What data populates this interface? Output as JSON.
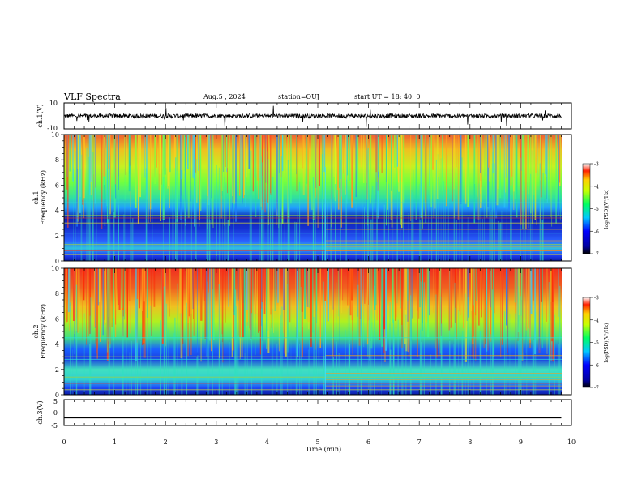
{
  "header": {
    "title": "VLF Spectra",
    "date": "Aug.5  , 2024",
    "station": "station=OUJ",
    "start": "start  UT  =   18: 40: 0"
  },
  "chart_data": [
    {
      "type": "line",
      "ylabel": "ch.1(V)",
      "ylim": [
        -10,
        10
      ],
      "yticks": [
        "10",
        "-10"
      ],
      "xlim": [
        0,
        10
      ],
      "description_series": "noisy waveform around 0 V with spikes"
    },
    {
      "type": "heatmap",
      "ylabel_top": "ch.1",
      "ylabel": "Frequency (kHz)",
      "ylim": [
        0,
        10
      ],
      "yticks": [
        "0",
        "2",
        "4",
        "6",
        "8",
        "10"
      ],
      "xlim": [
        0,
        10
      ],
      "colorbar": {
        "label": "log(PSD)(V²/Hz)",
        "ticks": [
          "-3",
          "-4",
          "-5",
          "-6",
          "-7"
        ],
        "range": [
          -7,
          -3
        ]
      }
    },
    {
      "type": "heatmap",
      "ylabel_top": "ch.2",
      "ylabel": "Frequency (kHz)",
      "ylim": [
        0,
        10
      ],
      "yticks": [
        "0",
        "2",
        "4",
        "6",
        "8",
        "10"
      ],
      "xlim": [
        0,
        10
      ],
      "colorbar": {
        "label": "log(PSD)(V²/Hz)",
        "ticks": [
          "-3",
          "-4",
          "-5",
          "-6",
          "-7"
        ],
        "range": [
          -7,
          -3
        ]
      }
    },
    {
      "type": "line",
      "ylabel": "ch.3(V)",
      "ylim": [
        -5,
        5
      ],
      "yticks": [
        "5",
        "0",
        "-5"
      ],
      "xlim": [
        0,
        10
      ],
      "values_constant": -2
    }
  ],
  "xaxis": {
    "label": "Time  (min)",
    "ticks": [
      "0",
      "1",
      "2",
      "3",
      "4",
      "5",
      "6",
      "7",
      "8",
      "9",
      "10"
    ]
  }
}
